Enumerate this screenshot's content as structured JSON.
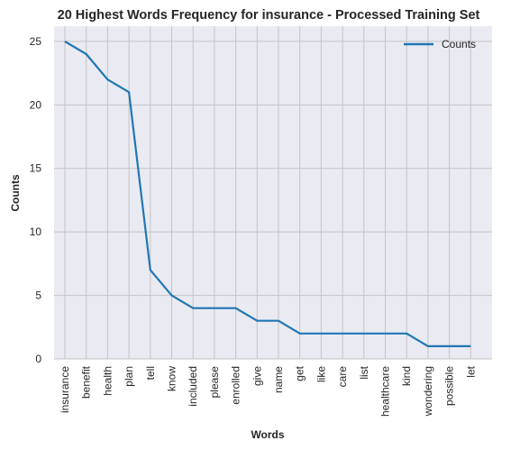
{
  "chart_data": {
    "type": "line",
    "title": "20 Highest Words Frequency for insurance - Processed Training Set",
    "xlabel": "Words",
    "ylabel": "Counts",
    "categories": [
      "insurance",
      "benefit",
      "health",
      "plan",
      "tell",
      "know",
      "included",
      "please",
      "enrolled",
      "give",
      "name",
      "get",
      "like",
      "care",
      "list",
      "healthcare",
      "kind",
      "wondering",
      "possible",
      "let"
    ],
    "series": [
      {
        "name": "Counts",
        "values": [
          25,
          24,
          22,
          21,
          7,
          5,
          4,
          4,
          4,
          3,
          3,
          2,
          2,
          2,
          2,
          2,
          2,
          1,
          1,
          1
        ],
        "color": "#1f77b4"
      }
    ],
    "ylim": [
      0,
      26.2
    ],
    "yticks": [
      0,
      5,
      10,
      15,
      20,
      25
    ],
    "grid": true,
    "legend": "top-right",
    "background": "#eaeaf2",
    "grid_color": "#c4c4c4"
  }
}
